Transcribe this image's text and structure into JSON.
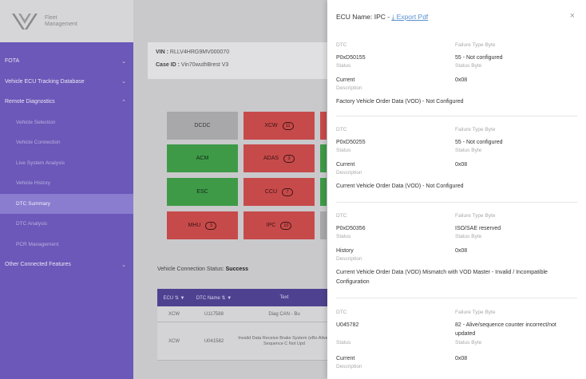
{
  "brand": {
    "line1": "Fleet",
    "line2": "Management"
  },
  "sidebar": {
    "items": [
      {
        "label": "FOTA",
        "type": "group",
        "chevron": "chevron-down"
      },
      {
        "label": "Vehicle ECU Tracking Database",
        "type": "group",
        "chevron": "chevron-down"
      },
      {
        "label": "Remote Diagnostics",
        "type": "group",
        "chevron": "chevron-up"
      },
      {
        "label": "Vehicle Selection",
        "type": "sub"
      },
      {
        "label": "Vehicle Connection",
        "type": "sub"
      },
      {
        "label": "Live System Analysis",
        "type": "sub"
      },
      {
        "label": "Vehicle History",
        "type": "sub"
      },
      {
        "label": "DTC Summary",
        "type": "sub",
        "active": true
      },
      {
        "label": "DTC Analysis",
        "type": "sub"
      },
      {
        "label": "PCR Management",
        "type": "sub"
      },
      {
        "label": "Other Connected Features",
        "type": "group",
        "chevron": "chevron-down"
      }
    ]
  },
  "vehicle": {
    "vin_label": "VIN :",
    "vin": "RLLV4HRG9MV000070",
    "case_label": "Case ID :",
    "case_id": "Vin70wuthBrest V3"
  },
  "ecus": [
    {
      "name": "DCDC",
      "status": "grey",
      "count": ""
    },
    {
      "name": "XCW",
      "status": "red",
      "count": "11"
    },
    {
      "name": "ACM",
      "status": "green",
      "count": ""
    },
    {
      "name": "ADAS",
      "status": "red",
      "count": "3"
    },
    {
      "name": "ESC",
      "status": "green",
      "count": ""
    },
    {
      "name": "CCU",
      "status": "red",
      "count": "7"
    },
    {
      "name": "MHU",
      "status": "red",
      "count": "3"
    },
    {
      "name": "IPC",
      "status": "red",
      "count": "10"
    }
  ],
  "connection": {
    "label": "Vehicle Connection Status:",
    "value": "Success"
  },
  "dtc_table": {
    "headers": [
      "ECU ⇅ ▼",
      "DTC Name ⇅ ▼",
      "Text"
    ],
    "rows": [
      [
        "XCW",
        "U117588",
        "Diag CAN - Bu"
      ],
      [
        "XCW",
        "U041582",
        "Invalid Data Receive Brake System (eBo Alive / Sequence C Not Upd"
      ]
    ]
  },
  "panel": {
    "title_label": "ECU Name:",
    "ecu_name": "IPC -",
    "export_label": "Export Pdf",
    "export_icon": "download-icon",
    "close_icon": "close-icon",
    "labels": {
      "dtc": "DTC",
      "failure_type": "Failure Type Byte",
      "status": "Status",
      "status_byte": "Status Byte",
      "description": "Description"
    },
    "entries": [
      {
        "dtc": "P0xD50155",
        "failure": "55 - Not configured",
        "status": "Current",
        "status_byte": "0x08",
        "description": "Factory Vehicle Order Data (VOD) - Not Configured"
      },
      {
        "dtc": "P0xD50255",
        "failure": "55 - Not configured",
        "status": "Current",
        "status_byte": "0x08",
        "description": "Current Vehicle Order Data (VOD) - Not Configured"
      },
      {
        "dtc": "P0xD50356",
        "failure": "ISO/SAE reserved",
        "status": "History",
        "status_byte": "0x08",
        "description": "Current Vehicle Order Data (VOD) Mismatch with VOD Master - Invalid / Incompatible Configuration"
      },
      {
        "dtc": "U045782",
        "failure": "82 - Alive/sequence counter incorrect/not updated",
        "status": "Current",
        "status_byte": "0x08",
        "description": ""
      }
    ]
  },
  "colors": {
    "sidebar": "#6b58b8",
    "active": "#8a7ccf",
    "red": "#c74a4a",
    "green": "#3f9a48",
    "link": "#5a8fd0"
  }
}
